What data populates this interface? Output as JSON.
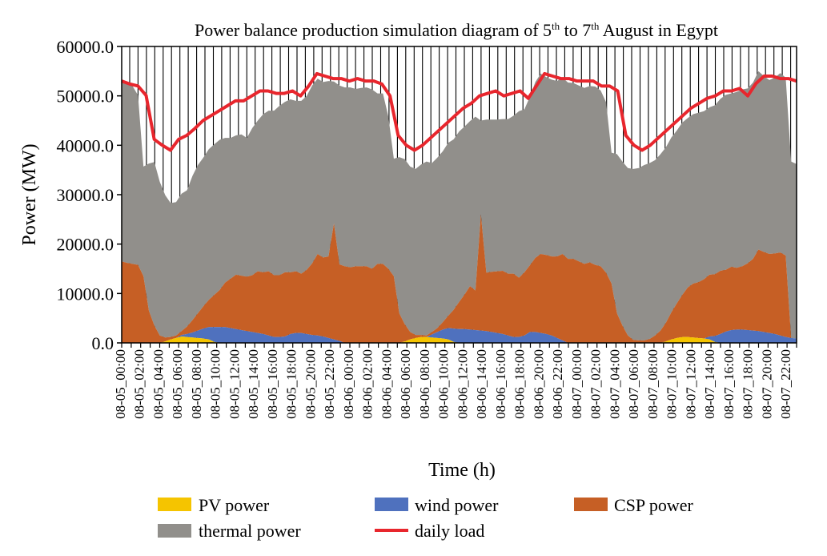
{
  "chart_data": {
    "type": "area",
    "title_main": "Power balance production simulation diagram of 5",
    "title_sup1": "th",
    "title_mid": " to 7",
    "title_sup2": "th",
    "title_end": " August in Egypt",
    "xlabel": "Time (h)",
    "ylabel": "Power (MW)",
    "ylim": [
      0,
      60000
    ],
    "y_ticks": [
      "0.0",
      "10000.0",
      "20000.0",
      "30000.0",
      "40000.0",
      "50000.0",
      "60000.0"
    ],
    "x_ticks": [
      "08-05_00:00",
      "08-05_02:00",
      "08-05_04:00",
      "08-05_06:00",
      "08-05_08:00",
      "08-05_10:00",
      "08-05_12:00",
      "08-05_14:00",
      "08-05_16:00",
      "08-05_18:00",
      "08-05_20:00",
      "08-05_22:00",
      "08-06_00:00",
      "08-06_02:00",
      "08-06_04:00",
      "08-06_06:00",
      "08-06_08:00",
      "08-06_10:00",
      "08-06_12:00",
      "08-06_14:00",
      "08-06_16:00",
      "08-06_18:00",
      "08-06_20:00",
      "08-06_22:00",
      "08-07_00:00",
      "08-07_02:00",
      "08-07_04:00",
      "08-07_06:00",
      "08-07_08:00",
      "08-07_10:00",
      "08-07_12:00",
      "08-07_14:00",
      "08-07_16:00",
      "08-07_18:00",
      "08-07_20:00",
      "08-07_22:00"
    ],
    "legend_placement": "bottom",
    "grid": false,
    "series": [
      {
        "name": "PV power",
        "color": "#f5c400",
        "values": [
          0,
          0,
          0,
          0,
          0,
          0,
          0,
          0,
          300,
          700,
          1000,
          1300,
          1200,
          1100,
          1000,
          900,
          700,
          200,
          0,
          0,
          0,
          0,
          0,
          0,
          0,
          0,
          0,
          0,
          0,
          0,
          0,
          0,
          0,
          0,
          0,
          0,
          0,
          0,
          0,
          0,
          0,
          0,
          0,
          0,
          0,
          0,
          0,
          0,
          0,
          0,
          0,
          0,
          300,
          700,
          1000,
          1200,
          1200,
          1100,
          1000,
          900,
          700,
          200,
          0,
          0,
          0,
          0,
          0,
          0,
          0,
          0,
          0,
          0,
          0,
          0,
          0,
          0,
          0,
          0,
          0,
          0,
          0,
          0,
          0,
          0,
          0,
          0,
          0,
          0,
          0,
          0,
          0,
          0,
          0,
          0,
          0,
          0,
          0,
          0,
          0,
          0,
          300,
          700,
          1000,
          1200,
          1200,
          1100,
          1000,
          900,
          700,
          200,
          0,
          0,
          0,
          0,
          0,
          0,
          0,
          0,
          0,
          0,
          0,
          0,
          0,
          0,
          0,
          0
        ]
      },
      {
        "name": "wind power",
        "color": "#4f71be",
        "values": [
          0,
          0,
          0,
          0,
          0,
          0,
          0,
          0,
          0,
          0,
          0,
          300,
          600,
          1000,
          1500,
          2000,
          2500,
          3000,
          3200,
          3200,
          3000,
          2800,
          2600,
          2400,
          2200,
          2000,
          1800,
          1500,
          1200,
          1200,
          1300,
          1800,
          2000,
          2000,
          1800,
          1600,
          1500,
          1300,
          1000,
          700,
          400,
          0,
          0,
          0,
          0,
          0,
          0,
          0,
          0,
          0,
          0,
          0,
          0,
          0,
          0,
          0,
          0,
          600,
          1200,
          1800,
          2300,
          2700,
          2800,
          2800,
          2700,
          2600,
          2500,
          2400,
          2200,
          2000,
          1800,
          1500,
          1200,
          1200,
          1500,
          2200,
          2200,
          2000,
          1800,
          1500,
          1000,
          500,
          0,
          0,
          0,
          0,
          0,
          0,
          0,
          0,
          0,
          0,
          0,
          0,
          0,
          0,
          0,
          0,
          0,
          0,
          0,
          0,
          0,
          0,
          0,
          0,
          0,
          0,
          600,
          1200,
          1800,
          2300,
          2600,
          2700,
          2700,
          2600,
          2500,
          2400,
          2200,
          2000,
          1800,
          1500,
          1200,
          1000,
          900,
          900,
          900,
          900,
          900,
          900,
          1000,
          1200,
          1200,
          1100,
          1000,
          900
        ]
      },
      {
        "name": "CSP power",
        "color": "#c65f25",
        "values": [
          16500,
          16200,
          16000,
          15800,
          13500,
          6500,
          3500,
          1500,
          800,
          500,
          500,
          800,
          1500,
          2500,
          3500,
          4500,
          5500,
          6500,
          7500,
          9000,
          10000,
          11000,
          11000,
          11000,
          11500,
          12500,
          12500,
          13000,
          12500,
          12500,
          13000,
          12500,
          12500,
          12000,
          13000,
          14500,
          16500,
          16000,
          16500,
          23500,
          15500,
          15500,
          15300,
          15500,
          15500,
          15500,
          15000,
          16000,
          16000,
          15000,
          13500,
          6000,
          3500,
          1500,
          600,
          400,
          300,
          500,
          800,
          1500,
          2500,
          3800,
          5500,
          7000,
          8800,
          8000,
          23500,
          11800,
          12200,
          12500,
          12800,
          12500,
          12800,
          12000,
          12800,
          13500,
          15000,
          16000,
          16000,
          16000,
          16500,
          17500,
          17000,
          17000,
          16500,
          16000,
          16300,
          15800,
          15500,
          14200,
          12000,
          6000,
          3500,
          1500,
          600,
          500,
          500,
          800,
          1500,
          2500,
          3800,
          5500,
          7000,
          8500,
          10000,
          10900,
          11300,
          12000,
          12500,
          12500,
          12800,
          12500,
          12800,
          12500,
          12800,
          13500,
          14500,
          16500,
          16200,
          16000,
          16300,
          16800,
          16500
        ]
      },
      {
        "name": "thermal power",
        "color": "#918f8b",
        "values": [
          36500,
          36200,
          36000,
          34300,
          22200,
          29800,
          33100,
          31100,
          28800,
          27100,
          27000,
          27800,
          27600,
          29200,
          30000,
          30100,
          30500,
          30500,
          30400,
          29300,
          28500,
          28200,
          28600,
          28100,
          29800,
          30500,
          32000,
          32500,
          33300,
          34300,
          34500,
          35000,
          34500,
          35000,
          35200,
          36000,
          35500,
          35500,
          35500,
          28700,
          36200,
          36200,
          36400,
          35900,
          36100,
          36200,
          36300,
          34500,
          34500,
          30800,
          23800,
          31600,
          33400,
          33500,
          33600,
          34500,
          35200,
          34200,
          34500,
          34600,
          35000,
          34500,
          34500,
          34000,
          33400,
          35200,
          19000,
          31000,
          30800,
          30700,
          30700,
          31300,
          32000,
          33700,
          33000,
          34100,
          35600,
          36500,
          36000,
          35800,
          35500,
          35700,
          35700,
          35600,
          35600,
          35600,
          35700,
          36100,
          35600,
          34500,
          26500,
          32200,
          33200,
          33900,
          34600,
          34900,
          35500,
          35600,
          35500,
          35700,
          35500,
          35400,
          35000,
          34900,
          34300,
          34300,
          34300,
          34000,
          33900,
          34200,
          34800,
          35400,
          35100,
          35600,
          35800,
          35400,
          35700,
          36100,
          35600,
          35200,
          35600,
          36300,
          36000,
          35700,
          35300
        ]
      },
      {
        "name": "daily load",
        "color": "#e8262d",
        "values": [
          53000,
          52400,
          52000,
          50100,
          41200,
          40000,
          39000,
          41200,
          42000,
          43400,
          45000,
          46000,
          47000,
          48000,
          49000,
          49000,
          50000,
          51000,
          51000,
          50500,
          50500,
          51000,
          50000,
          52000,
          54500,
          54000,
          53500,
          53500,
          53000,
          53500,
          53000,
          53000,
          52400,
          50000,
          42000,
          40000,
          39000,
          40000,
          41500,
          43000,
          44500,
          46000,
          47500,
          48500,
          50000,
          50500,
          51000,
          50000,
          50500,
          51000,
          49500,
          52000,
          54500,
          54000,
          53500,
          53500,
          53000,
          53000,
          53000,
          52000,
          52000,
          51000,
          42000,
          40000,
          39000,
          40000,
          41500,
          43000,
          44500,
          46000,
          47500,
          48500,
          49500,
          50000,
          51000,
          51000,
          51500,
          50000,
          52500,
          54000,
          54000,
          53500,
          53500,
          53000
        ]
      }
    ]
  },
  "legend": {
    "pv": "PV power",
    "wind": "wind power",
    "csp": "CSP power",
    "thermal": "thermal power",
    "load": "daily load"
  }
}
